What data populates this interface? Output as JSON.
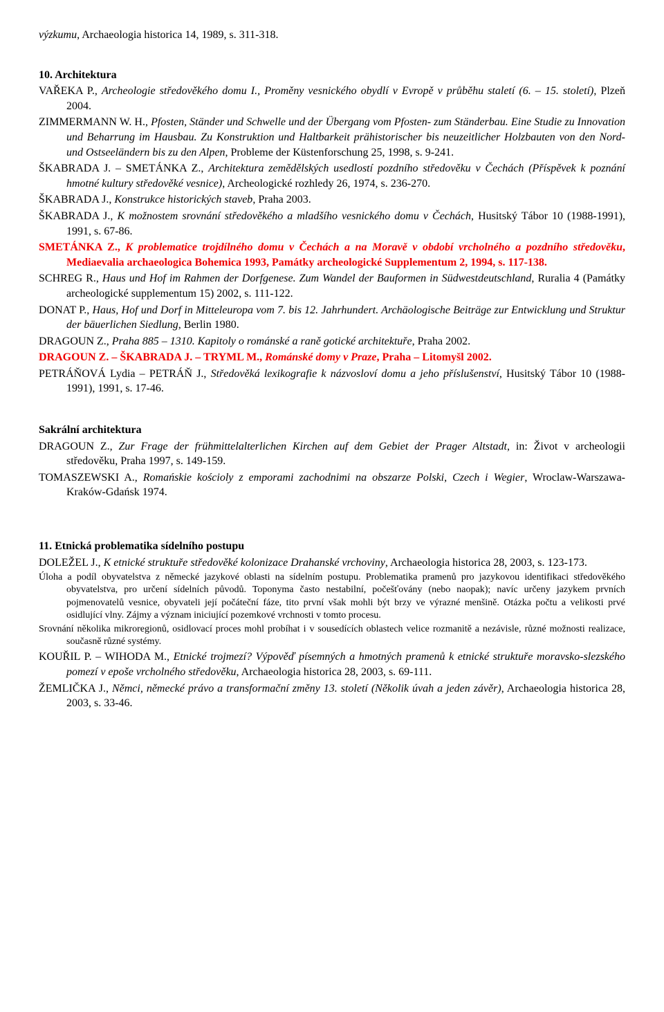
{
  "top_fragment": {
    "italic": "výzkumu",
    "rest": ", Archaeologia historica 14, 1989, s. 311-318."
  },
  "section_10": {
    "heading": "10. Architektura",
    "entries": [
      {
        "author": "VAŘEKA P., ",
        "title_italic": "Archeologie středověkého domu I., Proměny vesnického obydlí v Evropě v průběhu staletí (6. – 15. století)",
        "rest": ", Plzeň 2004."
      },
      {
        "author": "ZIMMERMANN W. H., ",
        "title_italic": "Pfosten, Ständer und Schwelle und der Übergang vom Pfosten- zum Ständerbau. Eine Studie zu Innovation und Beharrung im Hausbau. Zu Konstruktion und Haltbarkeit prähistorischer bis neuzeitlicher Holzbauten von den Nord- und Ostseeländern bis zu den Alpen",
        "rest": ", Probleme der Küstenforschung 25, 1998, s. 9-241."
      },
      {
        "author": "ŠKABRADA J. – SMETÁNKA Z., ",
        "title_italic": "Architektura zemědělských usedlostí pozdního středověku v Čechách (Příspěvek k poznání hmotné kultury středověké vesnice)",
        "rest": ", Archeologické rozhledy 26, 1974, s. 236-270."
      },
      {
        "author": "ŠKABRADA J., ",
        "title_italic": "Konstrukce historických staveb",
        "rest": ", Praha 2003."
      },
      {
        "author": "ŠKABRADA J., ",
        "title_italic": "K možnostem srovnání středověkého a mladšího vesnického domu v Čechách",
        "rest": ", Husitský Tábor 10 (1988-1991), 1991, s. 67-86."
      }
    ],
    "red_entries": [
      {
        "author": "SMETÁNKA Z., ",
        "title_italic": "K problematice trojdílného domu v Čechách a na Moravě v období vrcholného a pozdního středověku",
        "rest": ", Mediaevalia archaeologica Bohemica 1993, Památky archeologické Supplementum 2, 1994, s. 117-138."
      }
    ],
    "entries_after_red_1": [
      {
        "author": "SCHREG R., ",
        "title_italic": "Haus und Hof im Rahmen der Dorfgenese. Zum Wandel der Bauformen in Südwestdeutschland",
        "rest": ", Ruralia 4 (Památky archeologické supplementum 15) 2002, s. 111-122."
      },
      {
        "author": "DONAT P., ",
        "title_italic": "Haus, Hof und Dorf in Mitteleuropa vom 7. bis 12. Jahrhundert. Archäologische Beiträge zur Entwicklung und Struktur der bäuerlichen Siedlung",
        "rest": ", Berlin 1980."
      },
      {
        "author": "DRAGOUN Z., ",
        "title_italic": "Praha 885 – 1310. Kapitoly o románské a raně gotické architektuře",
        "rest": ", Praha 2002."
      }
    ],
    "red_entries_2": [
      {
        "author": "DRAGOUN Z. – ŠKABRADA J. –  TRYML M., ",
        "title_italic": "Románské domy v Praze",
        "rest": ", Praha – Litomyšl 2002."
      }
    ],
    "entries_after_red_2": [
      {
        "author": "PETRÁŇOVÁ Lydia – PETRÁŇ J., ",
        "title_italic": "Středověká lexikografie k názvosloví domu a jeho příslušenství",
        "rest": ", Husitský Tábor 10 (1988-1991), 1991, s. 17-46."
      }
    ]
  },
  "section_sacral": {
    "heading": "Sakrální architektura",
    "entries": [
      {
        "author": "DRAGOUN Z., ",
        "title_italic": "Zur Frage der frühmittelalterlichen Kirchen auf dem Gebiet der Prager Altstadt",
        "rest": ", in: Život v archeologii středověku, Praha 1997, s. 149-159."
      },
      {
        "author": "TOMASZEWSKI A., ",
        "title_italic": "Romańskie kościoly z emporami zachodnimi na obszarze Polski, Czech i Wegier",
        "rest": ", Wroclaw-Warszawa-Kraków-Gdańsk 1974."
      }
    ]
  },
  "section_11": {
    "heading": "11. Etnická problematika sídelního postupu",
    "entries": [
      {
        "author": "DOLEŽEL J., ",
        "title_italic": "K etnické struktuře středověké kolonizace Drahanské vrchoviny",
        "rest": ", Archaeologia historica 28, 2003, s. 123-173.",
        "small_note": "Úloha a podíl obyvatelstva z německé jazykové oblasti na sídelním postupu. Problematika pramenů pro jazykovou identifikaci středověkého obyvatelstva, pro určení sídelních původů. Toponyma často nestabilní, počešťovány (nebo naopak); navíc určeny jazykem prvních pojmenovatelů vesnice, obyvateli její počáteční fáze, tito první  však mohli být brzy ve výrazné menšině. Otázka počtu a velikosti prvé osidlující vlny. Zájmy a význam iniciující pozemkové vrchnosti v tomto procesu.\nSrovnání několika mikroregionů, osidlovací proces mohl probíhat i v sousedících oblastech velice rozmanitě a nezávisle, různé možnosti realizace, současně různé systémy."
      },
      {
        "author": "KOUŘIL P. – WIHODA M., ",
        "title_italic": "Etnické trojmezí? Výpověď písemných a hmotných pramenů k etnické struktuře moravsko-slezského pomezí v epoše vrcholného středověku",
        "rest": ", Archaeologia historica 28, 2003, s. 69-111."
      },
      {
        "author": "ŽEMLIČKA J., ",
        "title_italic": "Němci, německé právo a transformační změny 13. století (Několik úvah a jeden závěr)",
        "rest": ", Archaeologia historica 28, 2003, s. 33-46."
      }
    ]
  }
}
